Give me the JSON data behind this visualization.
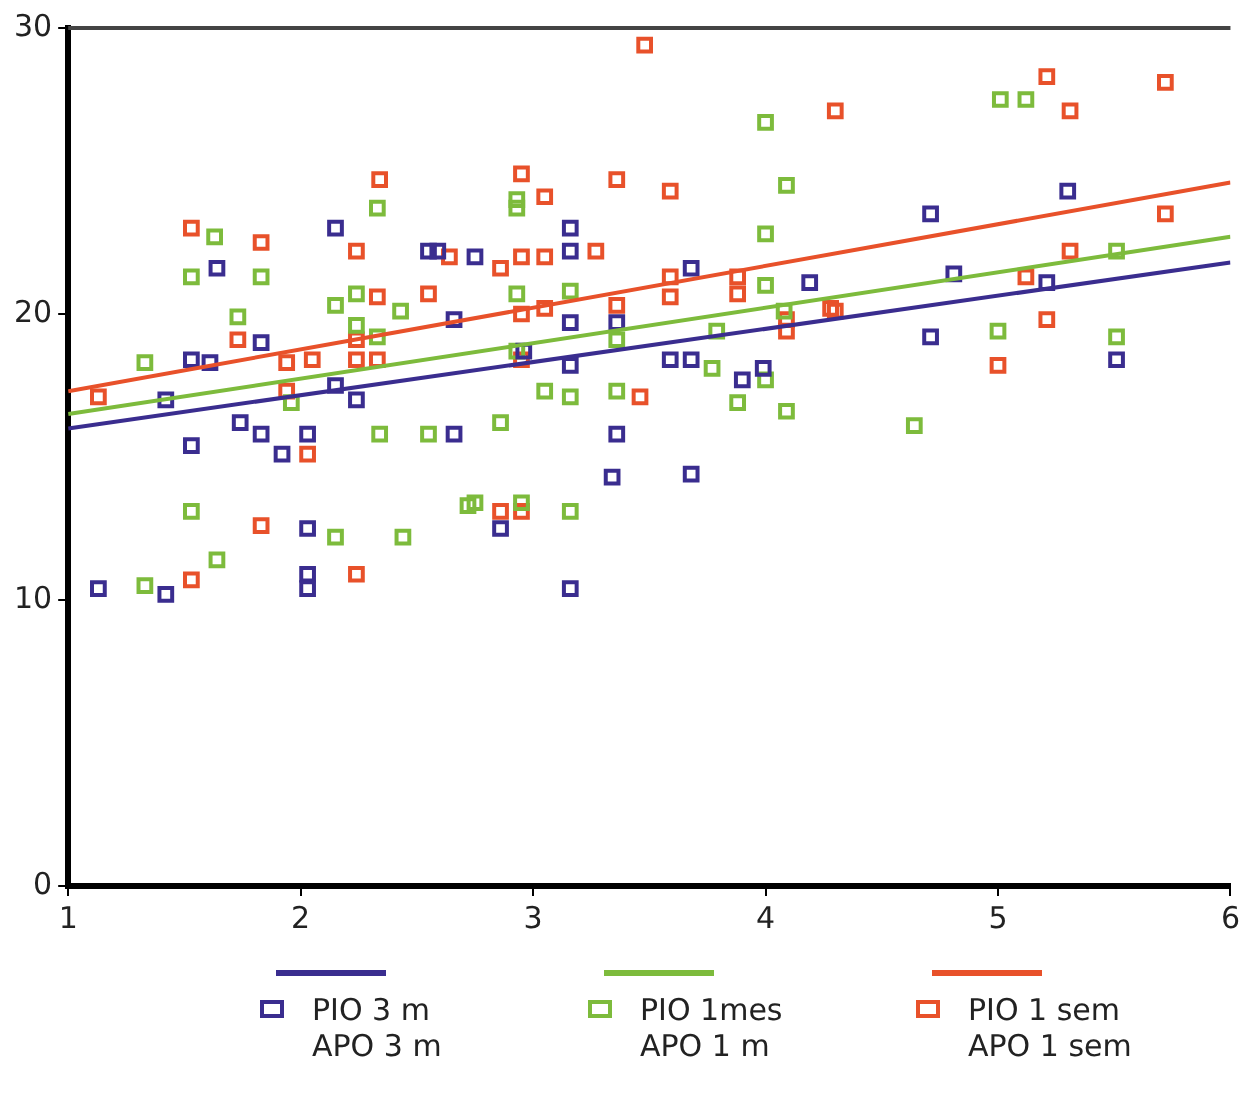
{
  "chart_data": {
    "type": "scatter",
    "xlim": [
      1,
      6
    ],
    "xticks": [
      1,
      2,
      3,
      4,
      5,
      6
    ],
    "ylim": [
      0,
      30
    ],
    "yticks": [
      0,
      10,
      20,
      30
    ],
    "grid": false,
    "legend": "bottom",
    "marker": "square",
    "series": [
      {
        "name": "PIO 3 m APO 3 m",
        "color": "#3a2d8f",
        "x": [
          1.13,
          1.42,
          1.53,
          1.53,
          1.61,
          1.64,
          1.74,
          1.83,
          1.83,
          1.92,
          2.03,
          2.03,
          2.03,
          2.03,
          2.15,
          2.15,
          2.24,
          2.55,
          2.59,
          2.66,
          2.66,
          2.75,
          2.86,
          2.96,
          3.16,
          3.16,
          3.16,
          3.16,
          3.16,
          3.34,
          3.36,
          3.36,
          3.59,
          3.68,
          3.68,
          3.68,
          3.9,
          3.99,
          4.19,
          4.71,
          4.71,
          4.81,
          5.21,
          5.3,
          5.51,
          1.42
        ],
        "values": [
          10.4,
          10.2,
          15.4,
          18.4,
          18.3,
          21.6,
          16.2,
          15.8,
          19.0,
          15.1,
          15.8,
          10.9,
          10.4,
          12.5,
          23.0,
          17.5,
          17.0,
          22.2,
          22.2,
          15.8,
          19.8,
          22.0,
          12.5,
          18.7,
          22.2,
          19.7,
          18.2,
          10.4,
          23.0,
          14.3,
          15.8,
          19.7,
          18.4,
          18.4,
          14.4,
          21.6,
          17.7,
          18.1,
          21.1,
          23.5,
          19.2,
          21.4,
          21.1,
          24.3,
          18.4,
          17.0
        ]
      },
      {
        "name": "PIO 1mes APO 1 m",
        "color": "#7dbb3c",
        "x": [
          1.33,
          1.33,
          1.53,
          1.53,
          1.63,
          1.64,
          1.73,
          1.83,
          1.96,
          2.15,
          2.15,
          2.24,
          2.24,
          2.33,
          2.33,
          2.34,
          2.43,
          2.44,
          2.55,
          2.72,
          2.75,
          2.86,
          2.93,
          2.93,
          2.93,
          2.93,
          2.95,
          3.05,
          3.16,
          3.16,
          3.16,
          3.36,
          3.36,
          3.77,
          3.79,
          3.88,
          4.0,
          4.0,
          4.0,
          4.0,
          4.08,
          4.09,
          4.09,
          4.64,
          5.0,
          5.01,
          5.12,
          5.51,
          5.51
        ],
        "values": [
          10.5,
          18.3,
          13.1,
          21.3,
          22.7,
          11.4,
          19.9,
          21.3,
          16.9,
          12.2,
          20.3,
          20.7,
          19.6,
          23.7,
          19.2,
          15.8,
          20.1,
          12.2,
          15.8,
          13.3,
          13.4,
          16.2,
          24.0,
          23.7,
          20.7,
          18.7,
          13.4,
          17.3,
          17.1,
          13.1,
          20.8,
          17.3,
          19.1,
          18.1,
          19.4,
          16.9,
          17.7,
          22.8,
          26.7,
          21.0,
          20.1,
          24.5,
          16.6,
          16.1,
          19.4,
          27.5,
          27.5,
          22.2,
          19.2
        ]
      },
      {
        "name": "PIO 1 sem APO 1 sem",
        "color": "#e8512a",
        "x": [
          1.13,
          1.53,
          1.53,
          1.73,
          1.83,
          1.83,
          1.94,
          1.94,
          2.03,
          2.05,
          2.24,
          2.24,
          2.24,
          2.24,
          2.33,
          2.33,
          2.34,
          2.55,
          2.64,
          2.86,
          2.86,
          2.95,
          2.95,
          2.95,
          2.95,
          2.95,
          3.05,
          3.05,
          3.05,
          3.27,
          3.36,
          3.36,
          3.46,
          3.48,
          3.59,
          3.59,
          3.59,
          3.88,
          3.88,
          4.09,
          4.09,
          4.28,
          4.3,
          4.3,
          5.0,
          5.12,
          5.21,
          5.21,
          5.31,
          5.31,
          5.72,
          5.72
        ],
        "values": [
          17.1,
          10.7,
          23.0,
          19.1,
          22.5,
          12.6,
          18.3,
          17.3,
          15.1,
          18.4,
          22.2,
          19.1,
          18.4,
          10.9,
          20.6,
          18.4,
          24.7,
          20.7,
          22.0,
          21.6,
          13.1,
          24.9,
          22.0,
          20.0,
          18.4,
          13.1,
          24.1,
          22.0,
          20.2,
          22.2,
          24.7,
          20.3,
          17.1,
          29.4,
          24.3,
          21.3,
          20.6,
          21.3,
          20.7,
          19.8,
          19.4,
          20.2,
          27.1,
          20.1,
          18.2,
          21.3,
          28.3,
          19.8,
          27.1,
          22.2,
          28.1,
          23.5
        ]
      },
      {
        "type": "line",
        "marker": "none",
        "color": "#3a2d8f",
        "x": [
          1,
          6
        ],
        "values": [
          16.0,
          21.8
        ]
      },
      {
        "type": "line",
        "marker": "none",
        "color": "#7dbb3c",
        "x": [
          1,
          6
        ],
        "values": [
          16.5,
          22.7
        ]
      },
      {
        "type": "line",
        "marker": "none",
        "color": "#e8512a",
        "x": [
          1,
          6
        ],
        "values": [
          17.3,
          24.6
        ]
      }
    ]
  }
}
